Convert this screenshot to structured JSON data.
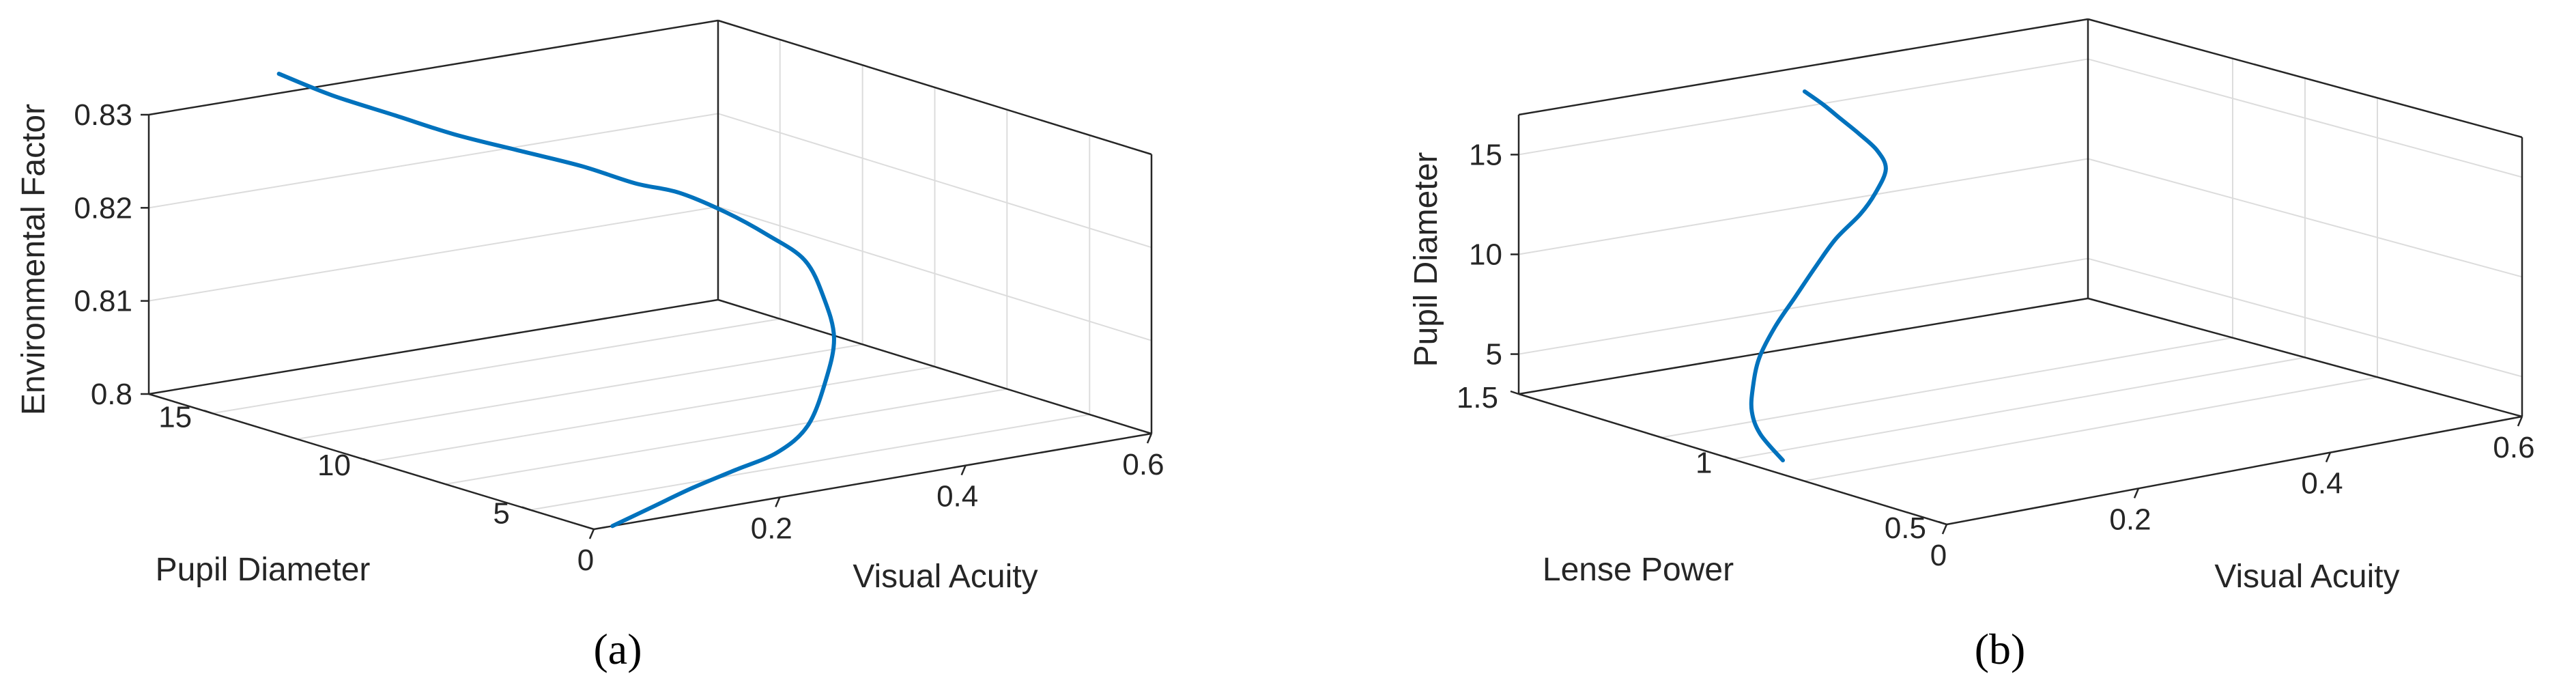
{
  "style": {
    "line_color": "#0072BD",
    "box_color": "#262626",
    "grid_color": "#DCDCDC",
    "text_color": "#262626",
    "background": "#FFFFFF"
  },
  "panel_labels": [
    "(a)",
    "(b)"
  ],
  "chart_data": [
    {
      "type": "line3d",
      "panel": "(a)",
      "xlabel": "Visual Acuity",
      "ylabel": "Pupil Diameter",
      "zlabel": "Environmental Factor",
      "xlim": [
        0,
        0.6
      ],
      "ylim": [
        3,
        17
      ],
      "zlim": [
        0.8,
        0.83
      ],
      "xticks": [
        0,
        0.2,
        0.4,
        0.6
      ],
      "xticklabels": [
        "0",
        "0.2",
        "0.4",
        "0.6"
      ],
      "yticks": [
        5,
        10,
        15
      ],
      "yticklabels": [
        "5",
        "10",
        "15"
      ],
      "zticks": [
        0.8,
        0.81,
        0.82,
        0.83
      ],
      "zticklabels": [
        "0.8",
        "0.81",
        "0.82",
        "0.83"
      ],
      "grid": true,
      "series": [
        {
          "x": [
            0.02,
            0.09,
            0.16,
            0.23,
            0.3,
            0.36,
            0.41,
            0.45,
            0.47,
            0.48,
            0.47,
            0.45,
            0.42,
            0.39,
            0.35,
            0.3,
            0.25,
            0.21,
            0.17,
            0.14
          ],
          "y": [
            3,
            3.8,
            4.6,
            5.3,
            6,
            6.8,
            7.7,
            8.6,
            9.5,
            10.4,
            11.3,
            12,
            12.6,
            13.1,
            13.6,
            14.1,
            14.7,
            15.4,
            16.2,
            17
          ],
          "z": [
            0.8,
            0.8,
            0.8,
            0.8,
            0.8,
            0.801,
            0.804,
            0.807,
            0.81,
            0.813,
            0.815,
            0.817,
            0.819,
            0.82,
            0.822,
            0.824,
            0.826,
            0.828,
            0.83,
            0.832
          ]
        }
      ]
    },
    {
      "type": "line3d",
      "panel": "(b)",
      "xlabel": "Visual Acuity",
      "ylabel": "Lense Power",
      "zlabel": "Pupil Diameter",
      "xlim": [
        0,
        0.6
      ],
      "ylim": [
        0.5,
        1.5
      ],
      "zlim": [
        3,
        17
      ],
      "xticks": [
        0,
        0.2,
        0.4,
        0.6
      ],
      "xticklabels": [
        "0",
        "0.2",
        "0.4",
        "0.6"
      ],
      "yticks": [
        0.5,
        1,
        1.5
      ],
      "yticklabels": [
        "0.5",
        "1",
        "1.5"
      ],
      "zticks": [
        5,
        10,
        15
      ],
      "zticklabels": [
        "5",
        "10",
        "15"
      ],
      "grid": true,
      "series": [
        {
          "x": [
            0.03,
            0.02,
            0.02,
            0.03,
            0.05,
            0.08,
            0.11,
            0.14,
            0.17,
            0.2,
            0.22,
            0.24,
            0.24,
            0.23,
            0.22,
            0.21,
            0.2
          ],
          "y": [
            0.95,
            0.98,
            1.0,
            1.02,
            1.05,
            1.08,
            1.1,
            1.12,
            1.14,
            1.15,
            1.16,
            1.18,
            1.2,
            1.22,
            1.24,
            1.26,
            1.28
          ],
          "z": [
            3,
            4.2,
            5.2,
            6.2,
            7.3,
            8.4,
            9.5,
            10.6,
            11.6,
            12.5,
            13.3,
            14.2,
            15.0,
            15.8,
            16.5,
            17.2,
            17.8
          ]
        }
      ]
    }
  ]
}
